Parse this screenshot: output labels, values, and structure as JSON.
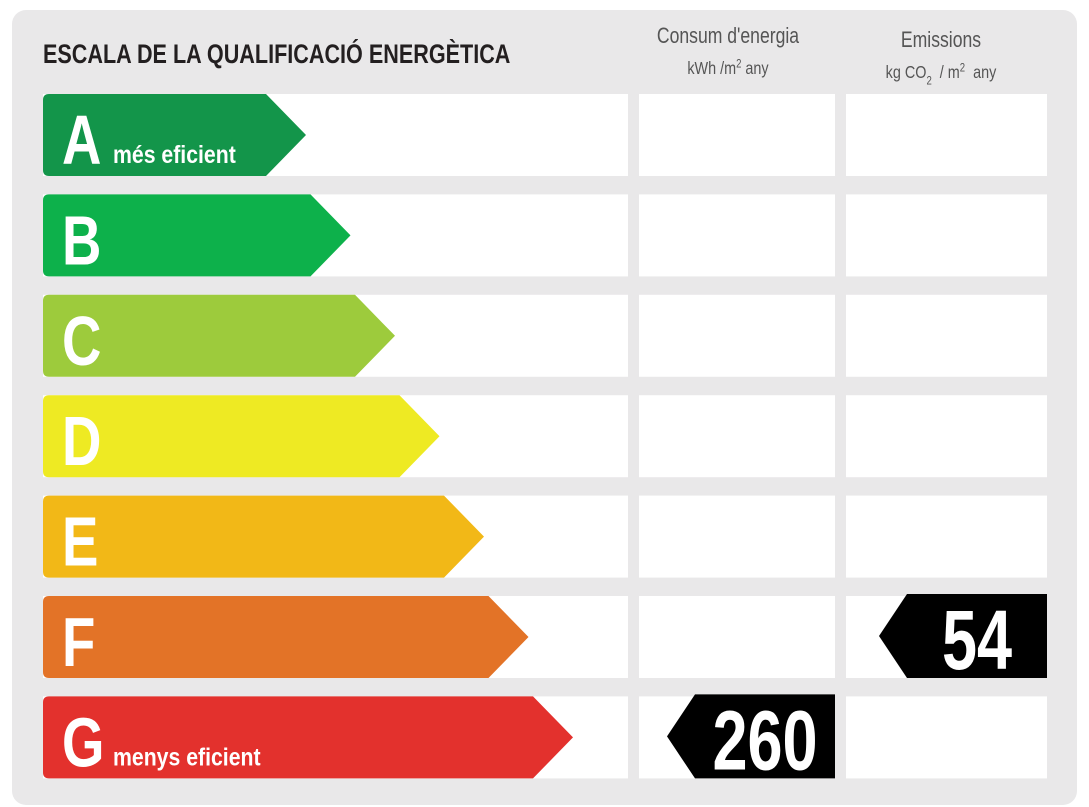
{
  "title": "ESCALA DE LA QUALIFICACIÓ ENERGÈTICA",
  "columns": {
    "consumption": {
      "label": "Consum d'energia",
      "unit": [
        "kWh /m",
        "2",
        " any"
      ]
    },
    "emissions": {
      "label": "Emissions",
      "unit": [
        "kg CO",
        "2",
        "  / m",
        "2",
        "  any"
      ]
    }
  },
  "rows": [
    {
      "letter": "A",
      "note": "més eficient",
      "color": "#13954a"
    },
    {
      "letter": "B",
      "color": "#0db14b"
    },
    {
      "letter": "C",
      "color": "#9dcb3c"
    },
    {
      "letter": "D",
      "color": "#eeea23"
    },
    {
      "letter": "E",
      "color": "#f2b817"
    },
    {
      "letter": "F",
      "color": "#e37327",
      "emissions": 54
    },
    {
      "letter": "G",
      "note": "menys eficient",
      "color": "#e3312d",
      "consumption": 260
    }
  ]
}
